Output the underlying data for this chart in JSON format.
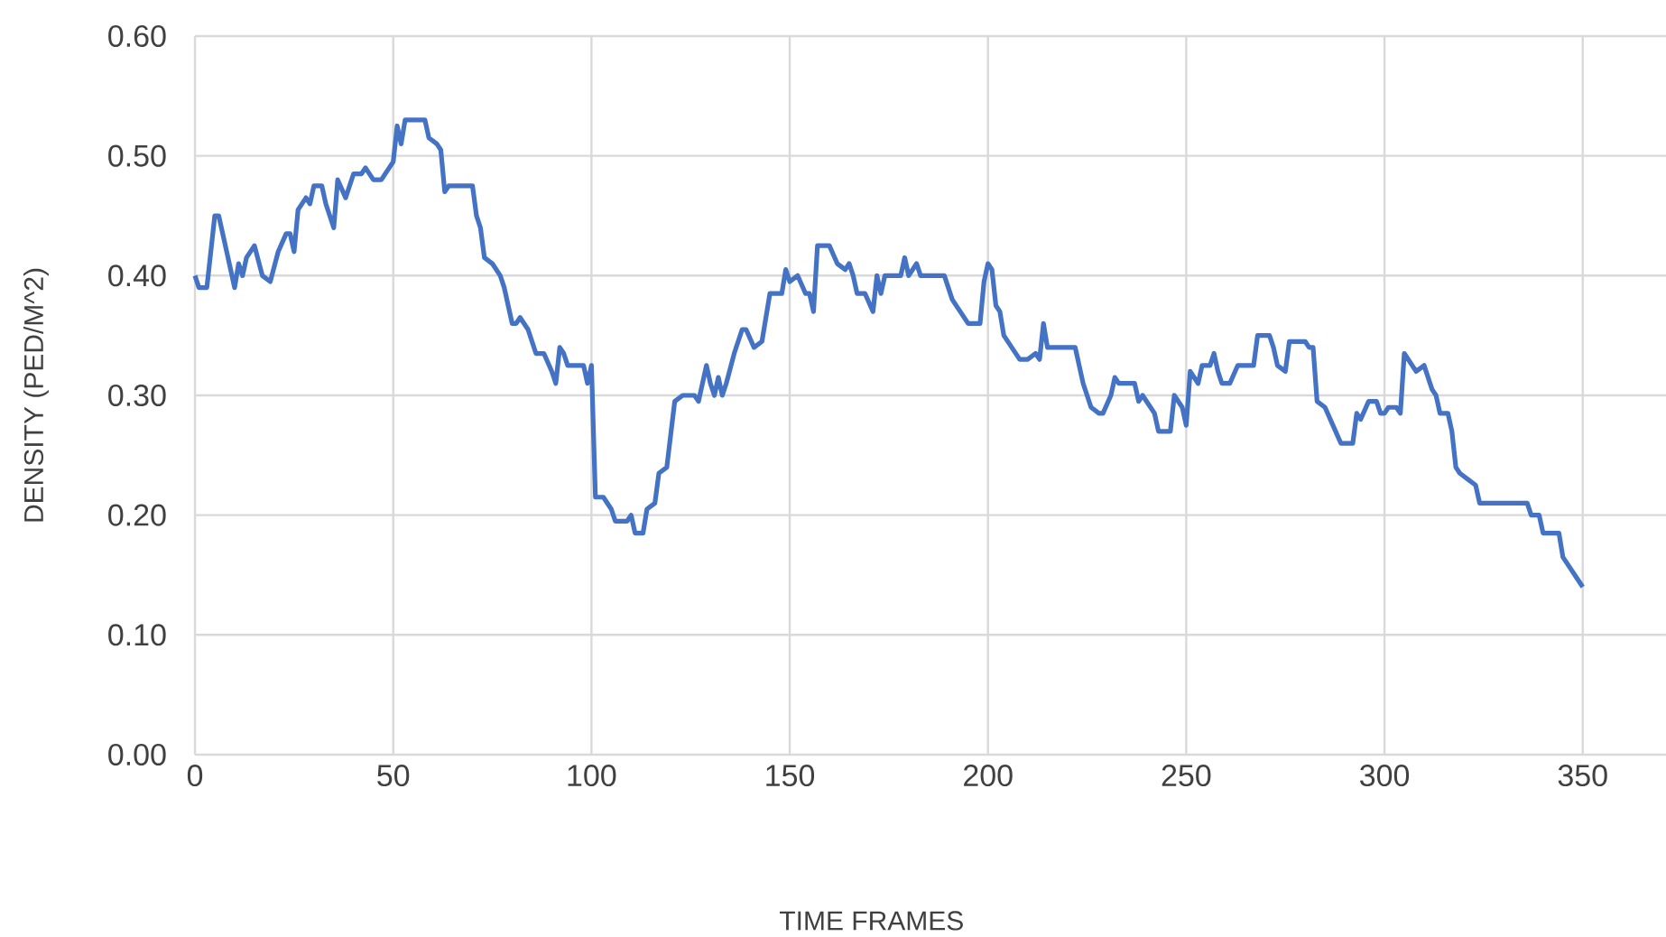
{
  "chart_data": {
    "type": "line",
    "xlabel": "TIME FRAMES",
    "ylabel": "DENSITY (PED/M^2)",
    "xlim": [
      0,
      371
    ],
    "xticks": [
      0,
      50,
      100,
      150,
      200,
      250,
      300,
      350
    ],
    "ylim": [
      0,
      0.6
    ],
    "yticks": [
      {
        "value": 0,
        "label": "0.00"
      },
      {
        "value": 0.1,
        "label": "0.10"
      },
      {
        "value": 0.2,
        "label": "0.20"
      },
      {
        "value": 0.3,
        "label": "0.30"
      },
      {
        "value": 0.4,
        "label": "0.40"
      },
      {
        "value": 0.5,
        "label": "0.50"
      },
      {
        "value": 0.6,
        "label": "0.60"
      }
    ],
    "grid": true,
    "marker": "none",
    "line_style": "solid",
    "series": [
      {
        "color": "#4472c4",
        "x": [
          0,
          1,
          3,
          5,
          6,
          8,
          10,
          11,
          12,
          13,
          15,
          17,
          19,
          21,
          23,
          24,
          25,
          26,
          28,
          29,
          30,
          32,
          33,
          35,
          36,
          38,
          40,
          42,
          43,
          45,
          47,
          49,
          50,
          51,
          52,
          53,
          55,
          58,
          59,
          61,
          62,
          63,
          64,
          70,
          71,
          72,
          73,
          75,
          77,
          78,
          80,
          81,
          82,
          84,
          86,
          88,
          90,
          91,
          92,
          93,
          94,
          98,
          99,
          100,
          101,
          103,
          105,
          106,
          109,
          110,
          111,
          113,
          114,
          116,
          117,
          119,
          121,
          123,
          126,
          127,
          129,
          130,
          131,
          132,
          133,
          134,
          136,
          138,
          139,
          141,
          143,
          145,
          148,
          149,
          150,
          152,
          154,
          155,
          156,
          157,
          160,
          162,
          164,
          165,
          166,
          167,
          169,
          171,
          172,
          173,
          174,
          178,
          179,
          180,
          182,
          183,
          189,
          191,
          193,
          195,
          198,
          199,
          200,
          201,
          202,
          203,
          204,
          206,
          208,
          210,
          212,
          213,
          214,
          215,
          222,
          224,
          226,
          228,
          229,
          231,
          232,
          233,
          237,
          238,
          239,
          241,
          242,
          243,
          246,
          247,
          249,
          250,
          251,
          253,
          254,
          256,
          257,
          258,
          259,
          261,
          263,
          267,
          268,
          271,
          272,
          273,
          275,
          276,
          280,
          281,
          282,
          283,
          285,
          287,
          289,
          292,
          293,
          294,
          296,
          298,
          299,
          300,
          301,
          303,
          304,
          305,
          307,
          308,
          310,
          311,
          312,
          313,
          314,
          316,
          317,
          318,
          319,
          321,
          323,
          324,
          336,
          337,
          339,
          340,
          344,
          345,
          347,
          348,
          350
        ],
        "values": [
          0.4,
          0.39,
          0.39,
          0.45,
          0.45,
          0.42,
          0.39,
          0.41,
          0.4,
          0.415,
          0.425,
          0.4,
          0.395,
          0.42,
          0.435,
          0.435,
          0.42,
          0.455,
          0.465,
          0.46,
          0.475,
          0.475,
          0.46,
          0.44,
          0.48,
          0.465,
          0.485,
          0.485,
          0.49,
          0.48,
          0.48,
          0.49,
          0.495,
          0.525,
          0.51,
          0.53,
          0.53,
          0.53,
          0.515,
          0.51,
          0.505,
          0.47,
          0.475,
          0.475,
          0.45,
          0.44,
          0.415,
          0.41,
          0.4,
          0.39,
          0.36,
          0.36,
          0.365,
          0.355,
          0.335,
          0.335,
          0.32,
          0.31,
          0.34,
          0.335,
          0.325,
          0.325,
          0.31,
          0.325,
          0.215,
          0.215,
          0.205,
          0.195,
          0.195,
          0.2,
          0.185,
          0.185,
          0.205,
          0.21,
          0.235,
          0.24,
          0.295,
          0.3,
          0.3,
          0.295,
          0.325,
          0.31,
          0.3,
          0.315,
          0.3,
          0.31,
          0.335,
          0.355,
          0.355,
          0.34,
          0.345,
          0.385,
          0.385,
          0.405,
          0.395,
          0.4,
          0.385,
          0.385,
          0.37,
          0.425,
          0.425,
          0.41,
          0.405,
          0.41,
          0.4,
          0.385,
          0.385,
          0.37,
          0.4,
          0.385,
          0.4,
          0.4,
          0.415,
          0.4,
          0.41,
          0.4,
          0.4,
          0.38,
          0.37,
          0.36,
          0.36,
          0.395,
          0.41,
          0.405,
          0.375,
          0.37,
          0.35,
          0.34,
          0.33,
          0.33,
          0.335,
          0.33,
          0.36,
          0.34,
          0.34,
          0.31,
          0.29,
          0.285,
          0.285,
          0.3,
          0.315,
          0.31,
          0.31,
          0.295,
          0.3,
          0.29,
          0.285,
          0.27,
          0.27,
          0.3,
          0.29,
          0.275,
          0.32,
          0.31,
          0.325,
          0.325,
          0.335,
          0.32,
          0.31,
          0.31,
          0.325,
          0.325,
          0.35,
          0.35,
          0.34,
          0.325,
          0.32,
          0.345,
          0.345,
          0.34,
          0.34,
          0.295,
          0.29,
          0.275,
          0.26,
          0.26,
          0.285,
          0.28,
          0.295,
          0.295,
          0.285,
          0.285,
          0.29,
          0.29,
          0.285,
          0.335,
          0.325,
          0.32,
          0.325,
          0.315,
          0.305,
          0.3,
          0.285,
          0.285,
          0.27,
          0.24,
          0.235,
          0.23,
          0.225,
          0.21,
          0.21,
          0.2,
          0.2,
          0.185,
          0.185,
          0.165,
          0.155,
          0.15,
          0.14
        ]
      }
    ]
  }
}
